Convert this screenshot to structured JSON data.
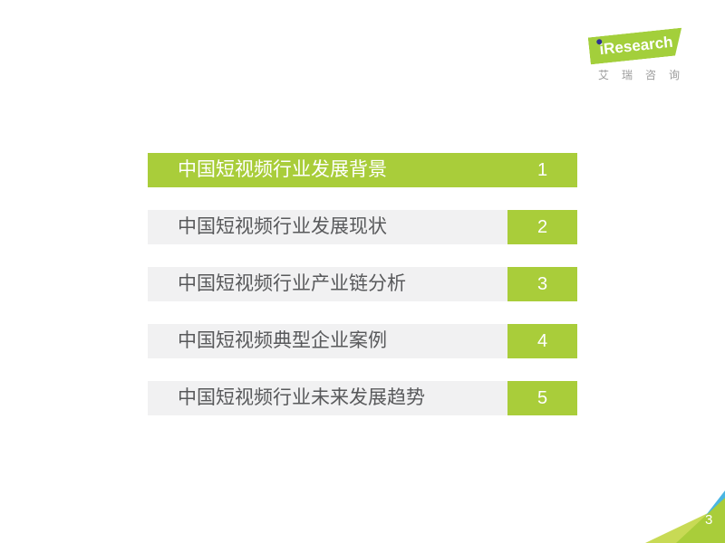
{
  "logo": {
    "brand": "iResearch",
    "brand_cn": "艾瑞咨询"
  },
  "toc": {
    "items": [
      {
        "label": "中国短视频行业发展背景",
        "number": "1",
        "active": true
      },
      {
        "label": "中国短视频行业发展现状",
        "number": "2",
        "active": false
      },
      {
        "label": "中国短视频行业产业链分析",
        "number": "3",
        "active": false
      },
      {
        "label": "中国短视频典型企业案例",
        "number": "4",
        "active": false
      },
      {
        "label": "中国短视频行业未来发展趋势",
        "number": "5",
        "active": false
      }
    ]
  },
  "footer": {
    "page_number": "3"
  },
  "colors": {
    "accent_green": "#a9cd3a",
    "row_gray": "#f1f1f2",
    "text_dark": "#58595b",
    "logo_dot_blue": "#2e3192",
    "corner_blue": "#4ab5e2",
    "corner_light_green": "#c8da55"
  }
}
